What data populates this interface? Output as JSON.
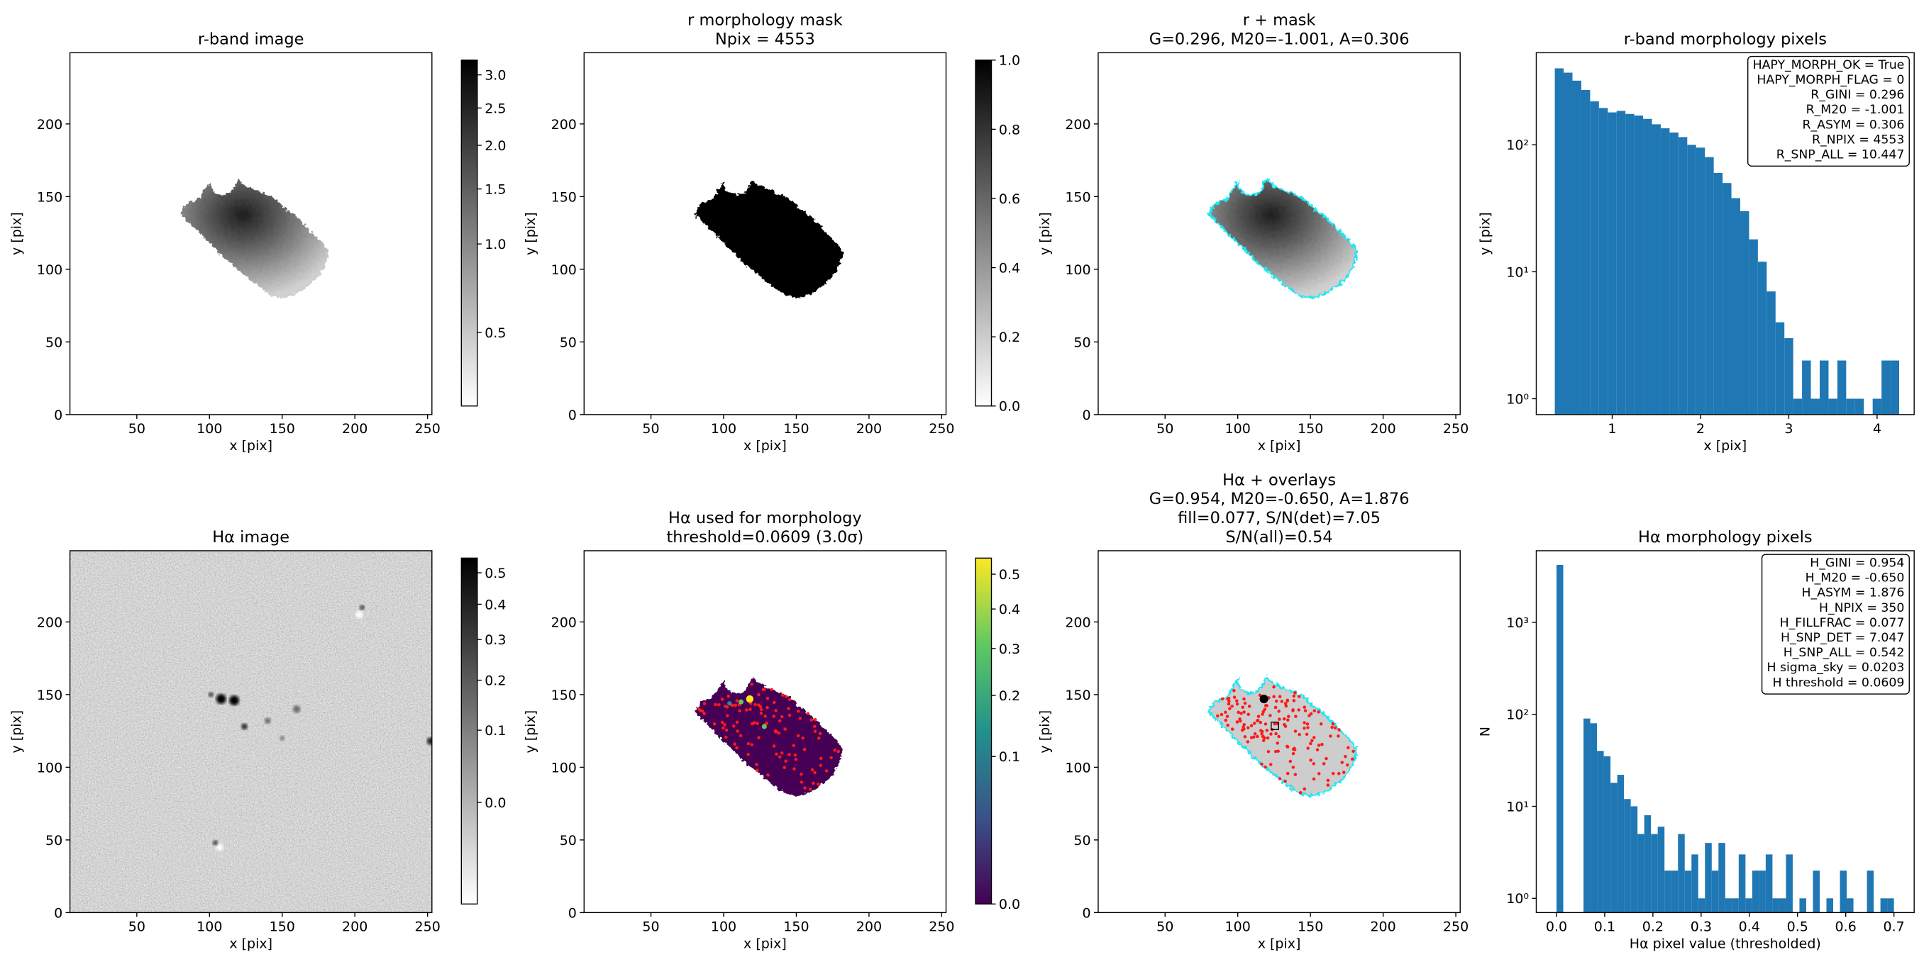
{
  "chart_data": [
    {
      "type": "image",
      "title": [
        "r-band image"
      ],
      "xlabel": "x [pix]",
      "ylabel": "y [pix]",
      "xlim": [
        4,
        253
      ],
      "ylim": [
        0,
        249
      ],
      "xticks": [
        50,
        100,
        150,
        200,
        250
      ],
      "yticks": [
        0,
        50,
        100,
        150,
        200
      ],
      "colorbar": {
        "cmap": "gray_r",
        "stretch": "sqrt",
        "clim": [
          0.37,
          3.24
        ],
        "ticks": [
          0.5,
          {
            "value": 1,
            "label": "1.0"
          },
          1.5,
          {
            "value": 2,
            "label": "2.0"
          },
          2.5,
          {
            "value": 3,
            "label": "3.0"
          }
        ]
      }
    },
    {
      "type": "image",
      "title": [
        "r morphology mask",
        "Npix = 4553"
      ],
      "xlabel": "x [pix]",
      "ylabel": "y [pix]",
      "xlim": [
        4,
        253
      ],
      "ylim": [
        0,
        249
      ],
      "xticks": [
        50,
        100,
        150,
        200,
        250
      ],
      "yticks": [
        0,
        50,
        100,
        150,
        200
      ],
      "colorbar": {
        "cmap": "gray_r",
        "stretch": "linear",
        "clim": [
          0,
          1
        ],
        "ticks": [
          {
            "value": 0,
            "label": "0.0"
          },
          0.2,
          0.4,
          0.6,
          0.8,
          {
            "value": 1,
            "label": "1.0"
          }
        ]
      }
    },
    {
      "type": "image",
      "title": [
        "r + mask",
        "G=0.296, M20=-1.001, A=0.306"
      ],
      "xlabel": "x [pix]",
      "ylabel": "y [pix]",
      "xlim": [
        4,
        253
      ],
      "ylim": [
        0,
        249
      ],
      "xticks": [
        50,
        100,
        150,
        200,
        250
      ],
      "yticks": [
        0,
        50,
        100,
        150,
        200
      ]
    },
    {
      "type": "histogram",
      "title": [
        "r-band morphology pixels"
      ],
      "xlabel": "x [pix]",
      "ylabel": "y [pix]",
      "color": "#1f77b4",
      "yscale": "log",
      "xlim": [
        0.14,
        4.42
      ],
      "ylim": [
        0.75,
        531
      ],
      "xticks": [
        1,
        2,
        3,
        4
      ],
      "yticks": [
        {
          "value": 1,
          "label": "10⁰"
        },
        {
          "value": 10,
          "label": "10¹"
        },
        {
          "value": 100,
          "label": "10²"
        }
      ],
      "bins": [
        0.35,
        0.45,
        0.55,
        0.65,
        0.75,
        0.85,
        0.95,
        1.05,
        1.15,
        1.25,
        1.35,
        1.45,
        1.55,
        1.65,
        1.75,
        1.85,
        1.95,
        2.05,
        2.15,
        2.25,
        2.35,
        2.45,
        2.55,
        2.65,
        2.75,
        2.85,
        2.95,
        3.05,
        3.15,
        3.25,
        3.35,
        3.45,
        3.55,
        3.65,
        3.75,
        3.85,
        3.95,
        4.05,
        4.15,
        4.25
      ],
      "counts": [
        400,
        370,
        320,
        270,
        220,
        195,
        180,
        185,
        175,
        170,
        160,
        145,
        135,
        125,
        115,
        100,
        95,
        80,
        60,
        50,
        38,
        30,
        18,
        12,
        7,
        4,
        3,
        1,
        2,
        1,
        2,
        1,
        2,
        1,
        1,
        0,
        1,
        2,
        2
      ],
      "annotation": [
        "HAPY_MORPH_OK = True",
        "HAPY_MORPH_FLAG = 0",
        "R_GINI = 0.296",
        "R_M20 = -1.001",
        "R_ASYM = 0.306",
        "R_NPIX = 4553",
        "R_SNP_ALL = 10.447"
      ]
    },
    {
      "type": "image",
      "title": [
        "Hα image"
      ],
      "xlabel": "x [pix]",
      "ylabel": "y [pix]",
      "xlim": [
        4,
        253
      ],
      "ylim": [
        0,
        249
      ],
      "xticks": [
        50,
        100,
        150,
        200,
        250
      ],
      "yticks": [
        0,
        50,
        100,
        150,
        200
      ],
      "colorbar": {
        "cmap": "gray_r",
        "stretch": "sqrt",
        "clim": [
          -0.052,
          0.55
        ],
        "ticks": [
          {
            "value": 0,
            "label": "0.0"
          },
          0.1,
          0.2,
          0.3,
          0.4,
          0.5
        ]
      }
    },
    {
      "type": "image",
      "title": [
        "Hα used for morphology",
        "threshold=0.0609 (3.0σ)"
      ],
      "xlabel": "x [pix]",
      "ylabel": "y [pix]",
      "xlim": [
        4,
        253
      ],
      "ylim": [
        0,
        249
      ],
      "xticks": [
        50,
        100,
        150,
        200,
        250
      ],
      "yticks": [
        0,
        50,
        100,
        150,
        200
      ],
      "colorbar": {
        "cmap": "viridis",
        "stretch": "sqrt",
        "clim": [
          0,
          0.55
        ],
        "ticks": [
          {
            "value": 0,
            "label": "0.0"
          },
          0.1,
          0.2,
          0.3,
          0.4,
          0.5
        ]
      }
    },
    {
      "type": "image",
      "title": [
        "Hα + overlays",
        "G=0.954, M20=-0.650, A=1.876",
        "fill=0.077, S/N(det)=7.05",
        "S/N(all)=0.54"
      ],
      "xlabel": "x [pix]",
      "ylabel": "y [pix]",
      "xlim": [
        4,
        253
      ],
      "ylim": [
        0,
        249
      ],
      "xticks": [
        50,
        100,
        150,
        200,
        250
      ],
      "yticks": [
        0,
        50,
        100,
        150,
        200
      ]
    },
    {
      "type": "histogram",
      "title": [
        "Hα morphology pixels"
      ],
      "xlabel": "Hα pixel value (thresholded)",
      "ylabel": "N",
      "color": "#1f77b4",
      "yscale": "log",
      "xlim": [
        -0.042,
        0.742
      ],
      "ylim": [
        0.7,
        6000
      ],
      "xticks": [
        {
          "value": 0,
          "label": "0.0"
        },
        0.1,
        0.2,
        0.3,
        0.4,
        0.5,
        0.6,
        0.7
      ],
      "yticks": [
        {
          "value": 1,
          "label": "10⁰"
        },
        {
          "value": 10,
          "label": "10¹"
        },
        {
          "value": 100,
          "label": "10²"
        },
        {
          "value": 1000,
          "label": "10³"
        }
      ],
      "bins": [
        0,
        0.014,
        0.028,
        0.042,
        0.056,
        0.07,
        0.084,
        0.098,
        0.112,
        0.126,
        0.14,
        0.154,
        0.168,
        0.182,
        0.196,
        0.21,
        0.224,
        0.238,
        0.252,
        0.266,
        0.28,
        0.294,
        0.308,
        0.322,
        0.336,
        0.35,
        0.364,
        0.378,
        0.392,
        0.406,
        0.42,
        0.434,
        0.448,
        0.462,
        0.476,
        0.49,
        0.504,
        0.518,
        0.532,
        0.546,
        0.56,
        0.574,
        0.588,
        0.602,
        0.616,
        0.63,
        0.644,
        0.658,
        0.672,
        0.686,
        0.7
      ],
      "counts": [
        4203,
        0,
        0,
        0,
        90,
        80,
        40,
        35,
        18,
        22,
        12,
        10,
        5,
        8,
        5,
        6,
        2,
        2,
        5,
        2,
        3,
        1,
        4,
        2,
        4,
        1,
        1,
        3,
        1,
        2,
        2,
        3,
        1,
        1,
        3,
        0,
        1,
        0,
        2,
        0,
        1,
        0,
        2,
        1,
        0,
        0,
        2,
        0,
        1,
        1
      ],
      "annotation": [
        "H_GINI = 0.954",
        "H_M20 = -0.650",
        "H_ASYM = 1.876",
        "H_NPIX = 350",
        "H_FILLFRAC = 0.077",
        "H_SNP_DET = 7.047",
        "H_SNP_ALL = 0.542",
        "H sigma_sky = 0.0203",
        "H threshold = 0.0609"
      ]
    }
  ]
}
